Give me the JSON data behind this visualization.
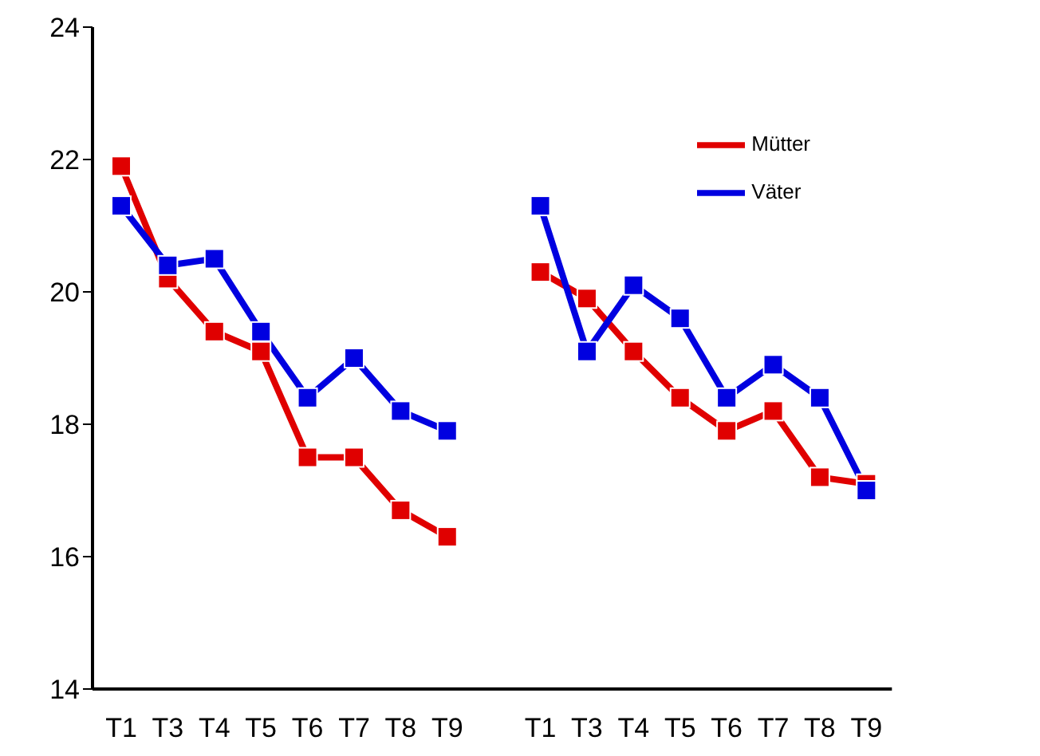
{
  "chart_data": {
    "type": "line",
    "categories": [
      "T1",
      "T3",
      "T4",
      "T5",
      "T6",
      "T7",
      "T8",
      "T9",
      null,
      "T1",
      "T3",
      "T4",
      "T5",
      "T6",
      "T7",
      "T8",
      "T9"
    ],
    "series": [
      {
        "name": "Mütter",
        "color": "#e00000",
        "values": [
          21.9,
          20.2,
          19.4,
          19.1,
          17.5,
          17.5,
          16.7,
          16.3,
          null,
          20.3,
          19.9,
          19.1,
          18.4,
          17.9,
          18.2,
          17.2,
          17.1
        ]
      },
      {
        "name": "Väter",
        "color": "#0000e0",
        "values": [
          21.3,
          20.4,
          20.5,
          19.4,
          18.4,
          19.0,
          18.2,
          17.9,
          null,
          21.3,
          19.1,
          20.1,
          19.6,
          18.4,
          18.9,
          18.4,
          17.0
        ]
      }
    ],
    "ylim": [
      14,
      24
    ],
    "yticks": [
      14,
      16,
      18,
      20,
      22,
      24
    ],
    "grid": false,
    "legend": "top right",
    "marker": "square",
    "line_style": "solid"
  }
}
